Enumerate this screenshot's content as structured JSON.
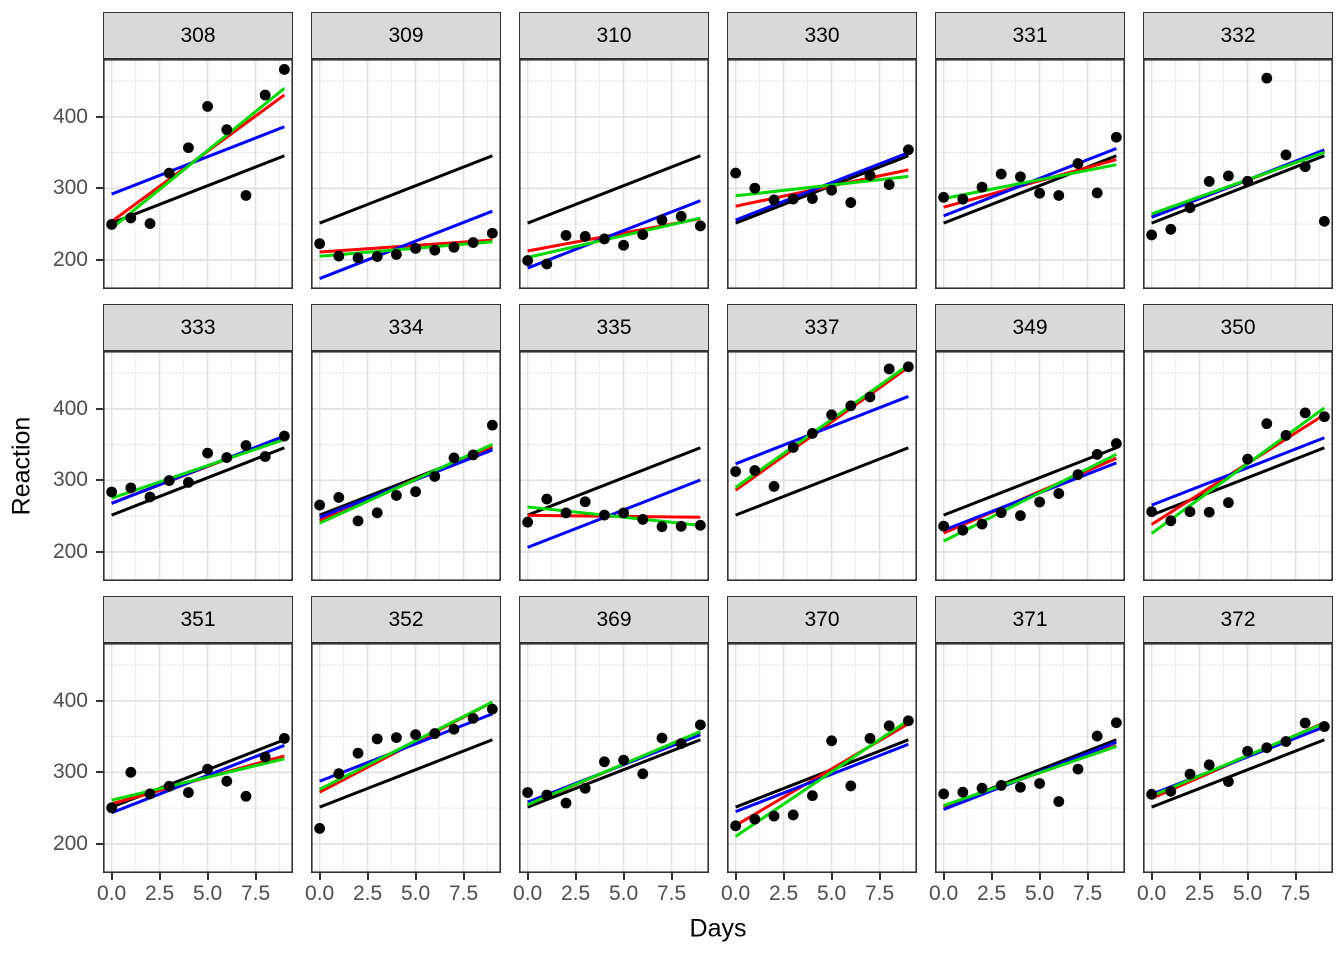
{
  "chart_data": {
    "type": "scatter",
    "title": "",
    "xlabel": "Days",
    "ylabel": "Reaction",
    "x_tick_values": [
      0,
      2.5,
      5,
      7.5
    ],
    "x_tick_labels": [
      "0.0",
      "2.5",
      "5.0",
      "7.5"
    ],
    "y_tick_values": [
      200,
      300,
      400
    ],
    "y_tick_labels": [
      "200",
      "300",
      "400"
    ],
    "x_minor_gridlines": [
      1.25,
      3.75,
      6.25,
      8.75
    ],
    "y_minor_gridlines": [
      250,
      350,
      450
    ],
    "xlim": [
      -0.45,
      9.45
    ],
    "ylim": [
      159.3,
      481.0
    ],
    "grid": true,
    "legend_position": "none",
    "days": [
      0,
      1,
      2,
      3,
      4,
      5,
      6,
      7,
      8,
      9
    ],
    "point_color": "#000000",
    "line_colors": {
      "black": "#000000",
      "blue": "#0000FF",
      "red": "#FF0000",
      "green": "#00D800"
    },
    "line_draw_order": [
      "black",
      "red",
      "blue",
      "green"
    ],
    "pooled_line": {
      "intercept": 251.41,
      "slope": 10.47
    },
    "facets": [
      {
        "subject": "308",
        "points": [
          249.6,
          258.7,
          250.8,
          321.4,
          356.9,
          414.7,
          382.2,
          290.1,
          430.6,
          466.4
        ],
        "lines": {
          "blue": {
            "intercept": 292.0,
            "slope": 10.47
          },
          "red": {
            "intercept": 253.66,
            "slope": 19.67
          },
          "green": {
            "intercept": 244.19,
            "slope": 21.76
          }
        }
      },
      {
        "subject": "309",
        "points": [
          222.7,
          205.3,
          203.0,
          204.7,
          207.7,
          216.0,
          213.6,
          217.7,
          224.3,
          237.3
        ],
        "lines": {
          "blue": {
            "intercept": 173.9,
            "slope": 10.47
          },
          "red": {
            "intercept": 211.01,
            "slope": 1.85
          },
          "green": {
            "intercept": 205.05,
            "slope": 2.26
          }
        }
      },
      {
        "subject": "310",
        "points": [
          199.1,
          194.3,
          234.3,
          232.8,
          229.3,
          220.5,
          235.4,
          255.8,
          261.0,
          247.5
        ],
        "lines": {
          "blue": {
            "intercept": 188.6,
            "slope": 10.47
          },
          "red": {
            "intercept": 212.44,
            "slope": 5.02
          },
          "green": {
            "intercept": 203.48,
            "slope": 6.11
          }
        }
      },
      {
        "subject": "330",
        "points": [
          321.5,
          300.4,
          283.9,
          285.1,
          285.8,
          297.6,
          280.2,
          318.3,
          305.3,
          354.0
        ],
        "lines": {
          "blue": {
            "intercept": 255.8,
            "slope": 10.47
          },
          "red": {
            "intercept": 275.1,
            "slope": 5.65
          },
          "green": {
            "intercept": 289.69,
            "slope": 3.01
          }
        }
      },
      {
        "subject": "331",
        "points": [
          287.6,
          285.0,
          301.8,
          320.1,
          316.3,
          293.3,
          290.1,
          334.8,
          293.7,
          371.6
        ],
        "lines": {
          "blue": {
            "intercept": 261.6,
            "slope": 10.47
          },
          "red": {
            "intercept": 273.67,
            "slope": 7.4
          },
          "green": {
            "intercept": 285.74,
            "slope": 5.27
          }
        }
      },
      {
        "subject": "332",
        "points": [
          234.9,
          242.8,
          273.0,
          309.8,
          317.5,
          310.0,
          454.2,
          346.8,
          330.3,
          253.9
        ],
        "lines": {
          "blue": {
            "intercept": 259.6,
            "slope": 10.47
          },
          "red": {
            "intercept": 260.44,
            "slope": 10.2
          },
          "green": {
            "intercept": 264.25,
            "slope": 9.57
          }
        }
      },
      {
        "subject": "333",
        "points": [
          283.8,
          289.6,
          276.8,
          299.8,
          297.2,
          338.2,
          332.0,
          348.8,
          333.4,
          362.0
        ],
        "lines": {
          "blue": {
            "intercept": 267.8,
            "slope": 10.47
          },
          "red": {
            "intercept": 268.25,
            "slope": 10.24
          },
          "green": {
            "intercept": 275.02,
            "slope": 9.14
          }
        }
      },
      {
        "subject": "334",
        "points": [
          265.5,
          276.2,
          243.4,
          254.7,
          279.0,
          284.2,
          305.5,
          331.5,
          335.7,
          377.3
        ],
        "lines": {
          "blue": {
            "intercept": 248.4,
            "slope": 10.47
          },
          "red": {
            "intercept": 244.17,
            "slope": 11.54
          },
          "green": {
            "intercept": 240.16,
            "slope": 12.25
          }
        }
      },
      {
        "subject": "335",
        "points": [
          241.6,
          273.9,
          254.5,
          270.1,
          251.5,
          254.6,
          245.5,
          235.3,
          235.8,
          237.2
        ],
        "lines": {
          "blue": {
            "intercept": 206.3,
            "slope": 10.47
          },
          "red": {
            "intercept": 251.07,
            "slope": -0.28
          },
          "green": {
            "intercept": 262.9,
            "slope": -2.87
          }
        }
      },
      {
        "subject": "337",
        "points": [
          312.4,
          313.8,
          291.6,
          346.1,
          365.7,
          391.8,
          404.3,
          416.7,
          455.9,
          458.9
        ],
        "lines": {
          "blue": {
            "intercept": 323.2,
            "slope": 10.47
          },
          "red": {
            "intercept": 286.3,
            "slope": 19.1
          },
          "green": {
            "intercept": 290.1,
            "slope": 19.03
          }
        }
      },
      {
        "subject": "349",
        "points": [
          236.1,
          230.3,
          238.9,
          254.9,
          250.7,
          269.8,
          281.6,
          308.1,
          336.3,
          351.6
        ],
        "lines": {
          "blue": {
            "intercept": 230.3,
            "slope": 10.47
          },
          "red": {
            "intercept": 226.2,
            "slope": 11.64
          },
          "green": {
            "intercept": 215.11,
            "slope": 13.49
          }
        }
      },
      {
        "subject": "350",
        "points": [
          256.3,
          243.5,
          256.2,
          255.5,
          268.9,
          329.7,
          379.4,
          362.9,
          394.5,
          389.1
        ],
        "lines": {
          "blue": {
            "intercept": 265.4,
            "slope": 10.47
          },
          "red": {
            "intercept": 238.34,
            "slope": 17.08
          },
          "green": {
            "intercept": 225.83,
            "slope": 19.5
          }
        }
      },
      {
        "subject": "351",
        "points": [
          250.5,
          300.1,
          269.9,
          280.6,
          271.8,
          304.6,
          287.7,
          266.6,
          321.5,
          347.6
        ],
        "lines": {
          "blue": {
            "intercept": 243.6,
            "slope": 10.47
          },
          "red": {
            "intercept": 255.98,
            "slope": 7.45
          },
          "green": {
            "intercept": 261.15,
            "slope": 6.43
          }
        }
      },
      {
        "subject": "352",
        "points": [
          221.7,
          298.2,
          326.9,
          346.9,
          348.7,
          352.8,
          354.4,
          360.4,
          375.6,
          388.5
        ],
        "lines": {
          "blue": {
            "intercept": 287.6,
            "slope": 10.47
          },
          "red": {
            "intercept": 272.27,
            "slope": 14.0
          },
          "green": {
            "intercept": 276.37,
            "slope": 13.57
          }
        }
      },
      {
        "subject": "369",
        "points": [
          271.9,
          268.4,
          257.2,
          277.7,
          314.8,
          317.2,
          298.1,
          348.1,
          340.3,
          366.5
        ],
        "lines": {
          "blue": {
            "intercept": 258.4,
            "slope": 10.47
          },
          "red": {
            "intercept": 254.68,
            "slope": 11.34
          },
          "green": {
            "intercept": 254.97,
            "slope": 11.35
          }
        }
      },
      {
        "subject": "370",
        "points": [
          225.3,
          234.5,
          238.9,
          240.5,
          267.5,
          344.2,
          281.1,
          347.6,
          365.2,
          372.2
        ],
        "lines": {
          "blue": {
            "intercept": 245.1,
            "slope": 10.47
          },
          "red": {
            "intercept": 225.79,
            "slope": 15.81
          },
          "green": {
            "intercept": 210.45,
            "slope": 18.06
          }
        }
      },
      {
        "subject": "371",
        "points": [
          269.9,
          272.4,
          277.9,
          281.8,
          279.2,
          284.5,
          259.3,
          304.6,
          350.8,
          369.5
        ],
        "lines": {
          "blue": {
            "intercept": 248.1,
            "slope": 10.47
          },
          "red": {
            "intercept": 252.21,
            "slope": 9.47
          },
          "green": {
            "intercept": 253.64,
            "slope": 9.19
          }
        }
      },
      {
        "subject": "372",
        "points": [
          269.4,
          273.5,
          297.6,
          310.6,
          287.2,
          329.6,
          334.5,
          343.2,
          369.1,
          364.1
        ],
        "lines": {
          "blue": {
            "intercept": 269.4,
            "slope": 10.47
          },
          "red": {
            "intercept": 263.72,
            "slope": 11.76
          },
          "green": {
            "intercept": 267.04,
            "slope": 11.3
          }
        }
      }
    ],
    "style": {
      "strip_background": "#D9D9D9",
      "panel_border": "#333333",
      "grid_major_color": "#E2E2E2",
      "grid_minor_color": "#ECECEC",
      "tick_label_color": "#4D4D4D",
      "axis_title_color": "#000000"
    }
  }
}
